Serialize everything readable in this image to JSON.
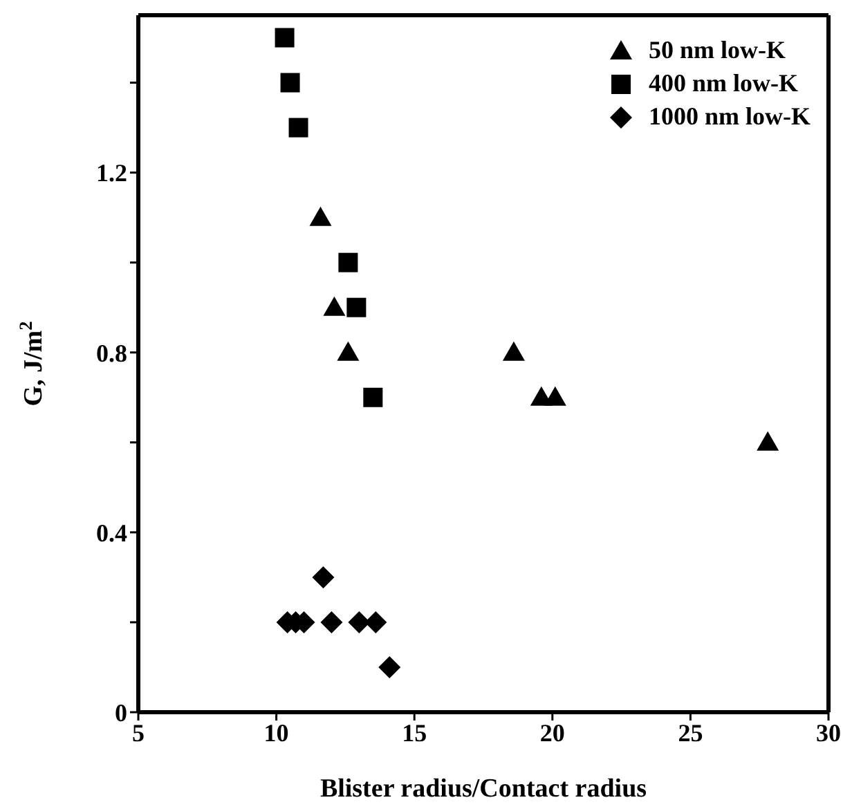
{
  "chart_data": {
    "type": "scatter",
    "xlabel": "Blister radius/Contact radius",
    "ylabel": "G, J/m$^{2}$",
    "xlim": [
      5,
      30
    ],
    "xticks": [
      5,
      10,
      15,
      20,
      25,
      30
    ],
    "ylim": [
      0,
      1.55
    ],
    "yticks": [
      0,
      {
        "value": 0.2,
        "label": null
      },
      0.4,
      {
        "value": 0.6,
        "label": null
      },
      0.8,
      {
        "value": 1.0,
        "label": null
      },
      1.2,
      {
        "value": 1.4,
        "label": null
      }
    ],
    "grid": false,
    "legend": "top right",
    "series": [
      {
        "name": "50 nm low-K",
        "color": "#000000",
        "marker": "triangle",
        "x": [
          11.6,
          12.1,
          12.6,
          18.6,
          19.6,
          20.1,
          27.8
        ],
        "values": [
          1.1,
          0.9,
          0.8,
          0.8,
          0.7,
          0.7,
          0.6
        ]
      },
      {
        "name": "400 nm low-K",
        "color": "#000000",
        "marker": "square",
        "x": [
          10.3,
          10.5,
          10.8,
          12.6,
          12.9,
          13.5
        ],
        "values": [
          1.5,
          1.4,
          1.3,
          1.0,
          0.9,
          0.7
        ]
      },
      {
        "name": "1000 nm low-K",
        "color": "#000000",
        "marker": "diamond",
        "x": [
          11.7,
          10.4,
          10.7,
          11.0,
          12.0,
          13.0,
          13.6,
          14.1
        ],
        "values": [
          0.3,
          0.2,
          0.2,
          0.2,
          0.2,
          0.2,
          0.2,
          0.1
        ]
      }
    ]
  }
}
